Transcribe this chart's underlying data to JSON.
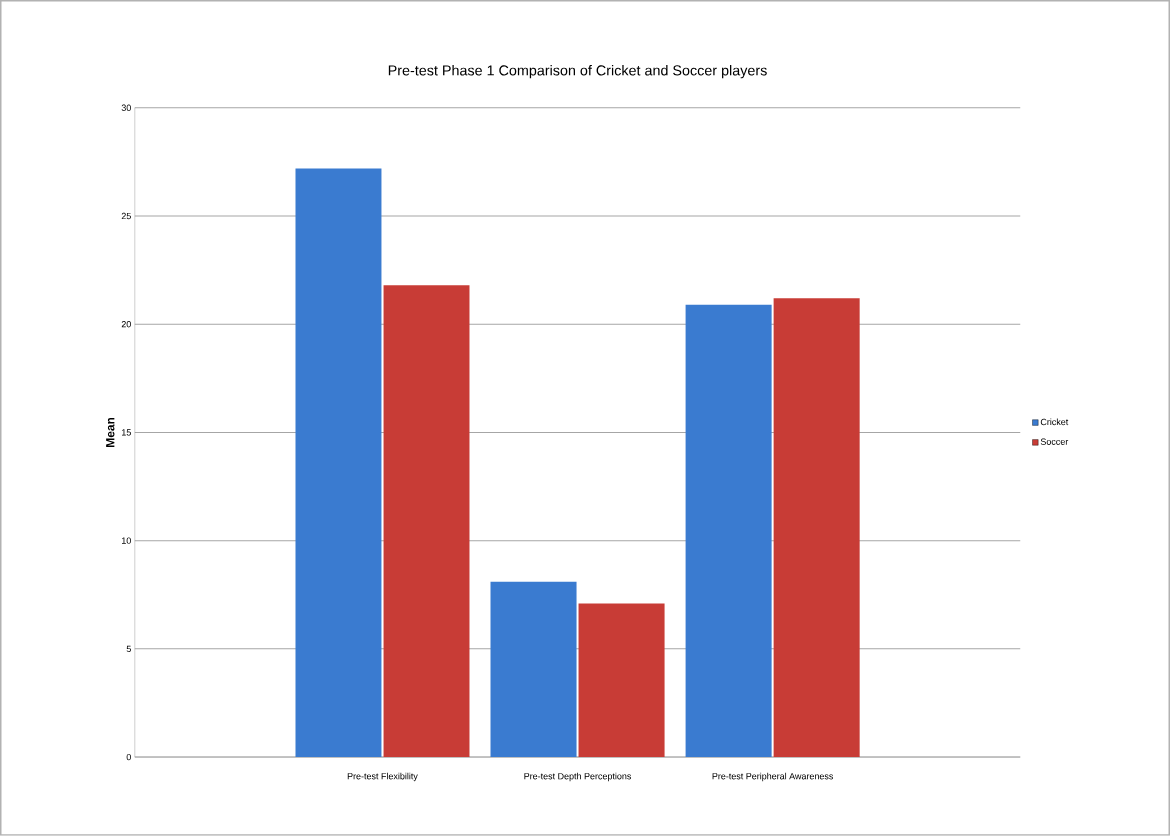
{
  "chart_data": {
    "type": "bar",
    "title": "Pre-test Phase 1 Comparison of Cricket and Soccer players",
    "ylabel": "Mean",
    "categories": [
      "Pre-test Flexibility",
      "Pre-test Depth Perceptions",
      "Pre-test Peripheral Awareness"
    ],
    "series": [
      {
        "name": "Cricket",
        "color": "#3a7bd0",
        "values": [
          27.2,
          8.1,
          20.9
        ]
      },
      {
        "name": "Soccer",
        "color": "#c83c36",
        "values": [
          21.8,
          7.1,
          21.2
        ]
      }
    ],
    "ylim": [
      0,
      30
    ],
    "yticks": [
      0,
      5,
      10,
      15,
      20,
      25,
      30
    ],
    "grid": "y",
    "legend": "right"
  }
}
